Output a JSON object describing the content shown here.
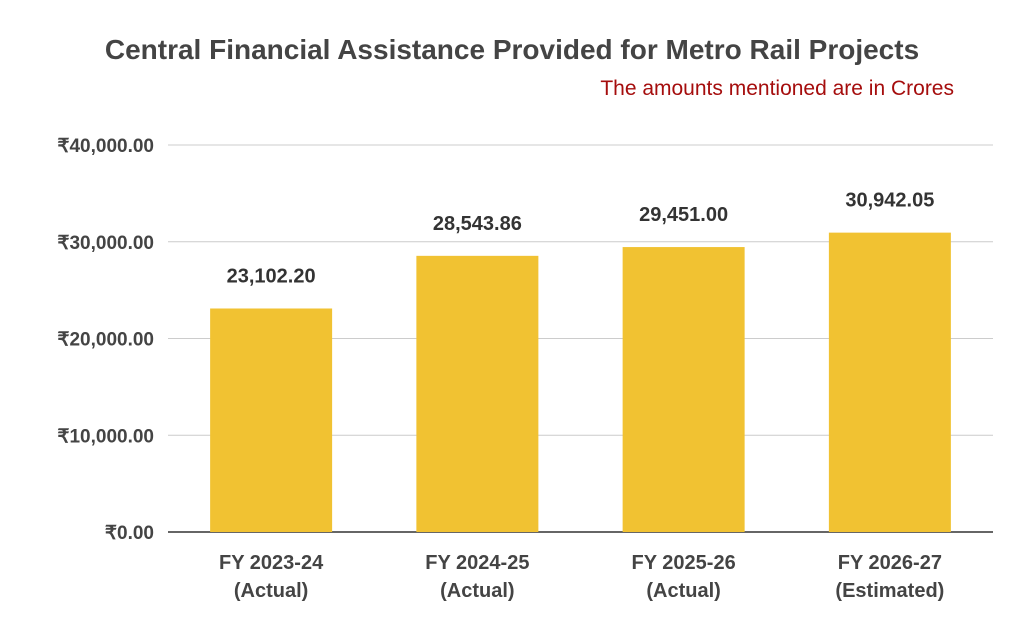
{
  "chart_data": {
    "type": "bar",
    "title": "Central Financial Assistance Provided for Metro Rail Projects",
    "subtitle": "The amounts mentioned are in Crores",
    "categories": [
      [
        "FY 2023-24",
        "(Actual)"
      ],
      [
        "FY 2024-25",
        "(Actual)"
      ],
      [
        "FY 2025-26",
        "(Actual)"
      ],
      [
        "FY 2026-27",
        "(Estimated)"
      ]
    ],
    "values": [
      23102.2,
      28543.86,
      29451.0,
      30942.05
    ],
    "data_labels": [
      "23,102.20",
      "28,543.86",
      "29,451.00",
      "30,942.05"
    ],
    "y_ticks": [
      0,
      10000,
      20000,
      30000,
      40000
    ],
    "y_tick_labels": [
      "₹0.00",
      "₹10,000.00",
      "₹20,000.00",
      "₹30,000.00",
      "₹40,000.00"
    ],
    "ylim": [
      0,
      40000
    ],
    "grid": true,
    "bar_color": "#f1c232",
    "xlabel": "",
    "ylabel": ""
  }
}
